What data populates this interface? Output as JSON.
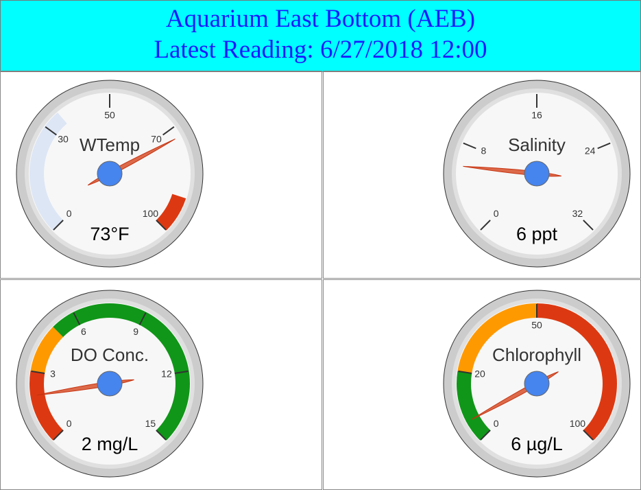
{
  "header": {
    "title": "Aquarium East Bottom (AEB)",
    "subtitle": "Latest Reading: 6/27/2018 12:00"
  },
  "chart_data": [
    {
      "type": "gauge",
      "title": "WTemp",
      "value": 73,
      "value_label": "73°F",
      "ylim": [
        0,
        100
      ],
      "yticks": [
        0,
        30,
        50,
        70,
        100
      ],
      "bands": [
        {
          "from": 0,
          "to": 35,
          "color": "#dde6f5"
        },
        {
          "from": 90,
          "to": 100,
          "color": "#dc3912"
        }
      ],
      "color": "#dc6a4a"
    },
    {
      "type": "gauge",
      "title": "Salinity",
      "value": 6,
      "value_label": "6 ppt",
      "ylim": [
        0,
        32
      ],
      "yticks": [
        0,
        8,
        16,
        24,
        32
      ],
      "bands": [],
      "color": "#dc6a4a"
    },
    {
      "type": "gauge",
      "title": "DO Conc.",
      "value": 2,
      "value_label": "2 mg/L",
      "ylim": [
        0,
        15
      ],
      "yticks": [
        0,
        3,
        6,
        9,
        12,
        15
      ],
      "bands": [
        {
          "from": 0,
          "to": 3,
          "color": "#dc3912"
        },
        {
          "from": 3,
          "to": 5,
          "color": "#ff9900"
        },
        {
          "from": 5,
          "to": 15,
          "color": "#109618"
        }
      ],
      "color": "#dc6a4a"
    },
    {
      "type": "gauge",
      "title": "Chlorophyll",
      "value": 6,
      "value_label": "6 µg/L",
      "ylim": [
        0,
        100
      ],
      "yticks": [
        0,
        20,
        50,
        100
      ],
      "bands": [
        {
          "from": 0,
          "to": 20,
          "color": "#109618"
        },
        {
          "from": 20,
          "to": 50,
          "color": "#ff9900"
        },
        {
          "from": 50,
          "to": 100,
          "color": "#dc3912"
        }
      ],
      "color": "#dc6a4a"
    }
  ]
}
